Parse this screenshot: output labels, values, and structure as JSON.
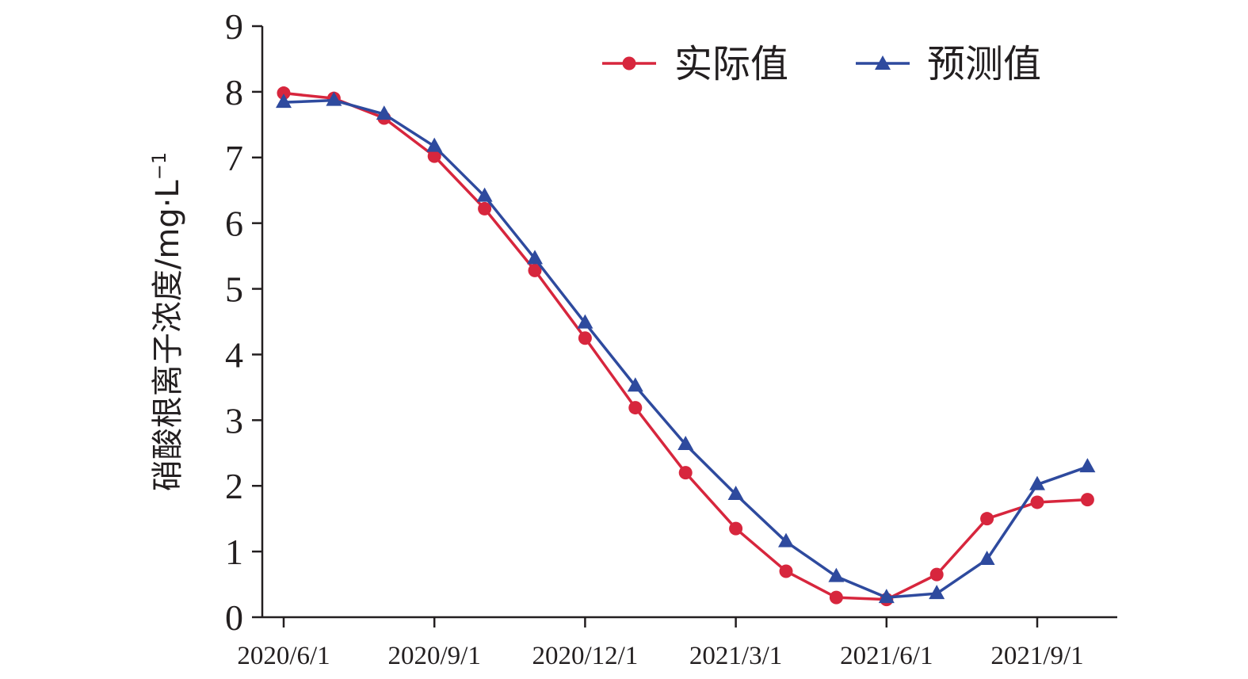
{
  "chart_data": {
    "type": "line",
    "ylabel": "硝酸根离子浓度/mg·L",
    "ylabel_sup": "−1",
    "xlabel": "",
    "ylim": [
      0,
      9
    ],
    "yticks": [
      "0",
      "1",
      "2",
      "3",
      "4",
      "5",
      "6",
      "7",
      "8",
      "9"
    ],
    "x_tick_labels": [
      {
        "label": "2020/6/1",
        "index": 0
      },
      {
        "label": "2020/9/1",
        "index": 3
      },
      {
        "label": "2020/12/1",
        "index": 6
      },
      {
        "label": "2021/3/1",
        "index": 9
      },
      {
        "label": "2021/6/1",
        "index": 12
      },
      {
        "label": "2021/9/1",
        "index": 15
      }
    ],
    "x": [
      "2020/6/1",
      "2020/7/1",
      "2020/8/1",
      "2020/9/1",
      "2020/10/1",
      "2020/11/1",
      "2020/12/1",
      "2021/1/1",
      "2021/2/1",
      "2021/3/1",
      "2021/4/1",
      "2021/5/1",
      "2021/6/1",
      "2021/7/1",
      "2021/8/1",
      "2021/9/1",
      "2021/10/1"
    ],
    "series": [
      {
        "name": "实际值",
        "color": "#d7263d",
        "marker": "circle",
        "values": [
          7.98,
          7.9,
          7.6,
          7.02,
          6.22,
          5.28,
          4.25,
          3.19,
          2.2,
          1.35,
          0.7,
          0.3,
          0.27,
          0.65,
          1.5,
          1.75,
          1.79
        ]
      },
      {
        "name": "预测值",
        "color": "#2e4a9e",
        "marker": "triangle",
        "values": [
          7.84,
          7.87,
          7.66,
          7.17,
          6.41,
          5.46,
          4.48,
          3.52,
          2.63,
          1.87,
          1.15,
          0.62,
          0.3,
          0.36,
          0.88,
          2.02,
          2.29
        ]
      }
    ],
    "legend_position": "top-right",
    "grid": false
  }
}
